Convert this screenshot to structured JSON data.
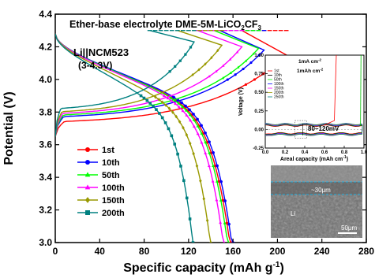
{
  "chart_data": [
    {
      "type": "line",
      "title": "Ether-base electrolyte DME-5M-LiCO",
      "title_sub": "2",
      "title_tail": "CF",
      "title_sub2": "3",
      "annotation_main": "Li||NCM523",
      "annotation_range": "(3-4.3V)",
      "xlabel": "Specific capacity (mAh g",
      "xlabel_sup": "-1",
      "xlabel_tail": ")",
      "ylabel": "Potential (V)",
      "xlim": [
        0,
        280
      ],
      "ylim": [
        3.0,
        4.4
      ],
      "xticks": [
        0,
        40,
        80,
        120,
        160,
        200,
        240,
        280
      ],
      "yticks": [
        "3.0",
        "3.2",
        "3.4",
        "3.6",
        "3.8",
        "4.0",
        "4.2",
        "4.4"
      ],
      "legend_position": "bottom-left",
      "series": [
        {
          "name": "1st",
          "color": "#ff0000",
          "marker": "circle",
          "charge_end": 208,
          "discharge_end": 158,
          "charge_start_v": 3.74,
          "discharge_plateau_v": 3.68
        },
        {
          "name": "10th",
          "color": "#0000ff",
          "marker": "circle",
          "charge_end": 188,
          "discharge_end": 160,
          "charge_start_v": 3.77,
          "discharge_plateau_v": 3.7
        },
        {
          "name": "50th",
          "color": "#00ff00",
          "marker": "triangle",
          "charge_end": 183,
          "discharge_end": 156,
          "charge_start_v": 3.78,
          "discharge_plateau_v": 3.68
        },
        {
          "name": "100th",
          "color": "#ff00ff",
          "marker": "triangle",
          "charge_end": 168,
          "discharge_end": 152,
          "charge_start_v": 3.79,
          "discharge_plateau_v": 3.67
        },
        {
          "name": "150th",
          "color": "#999900",
          "marker": "diamond",
          "charge_end": 150,
          "discharge_end": 140,
          "charge_start_v": 3.8,
          "discharge_plateau_v": 3.63
        },
        {
          "name": "200th",
          "color": "#008080",
          "marker": "square",
          "charge_end": 125,
          "discharge_end": 124,
          "charge_start_v": 3.82,
          "discharge_plateau_v": 3.6
        }
      ]
    },
    {
      "type": "line",
      "title": "",
      "xlabel": "Areal capacity (mAh cm",
      "xlabel_sup": "-1",
      "xlabel_tail": ")",
      "ylabel": "Voltage (V)",
      "xlim": [
        0.0,
        1.0
      ],
      "ylim": [
        -0.25,
        1.0
      ],
      "xticks": [
        "0.0",
        "0.2",
        "0.4",
        "0.6",
        "0.8",
        "1.0"
      ],
      "yticks": [
        "-0.25",
        "0.00",
        "0.25",
        "0.50",
        "0.75",
        "1.00"
      ],
      "conditions_current": "1mA cm",
      "conditions_current_sup": "-2",
      "conditions_capacity": "1mAh cm",
      "conditions_capacity_sup": "-2",
      "annotation": "80~120mV",
      "legend": [
        "1st",
        "10th",
        "50th",
        "100th",
        "150th",
        "200th",
        "250th"
      ],
      "legend_colors": [
        "#ff0000",
        "#000000",
        "#00ff00",
        "#0000ff",
        "#ff00ff",
        "#999900",
        "#008080"
      ]
    }
  ],
  "sem_image": {
    "thickness_label": "~30μm",
    "layer_label": "Li",
    "scale_label": "50μm"
  }
}
